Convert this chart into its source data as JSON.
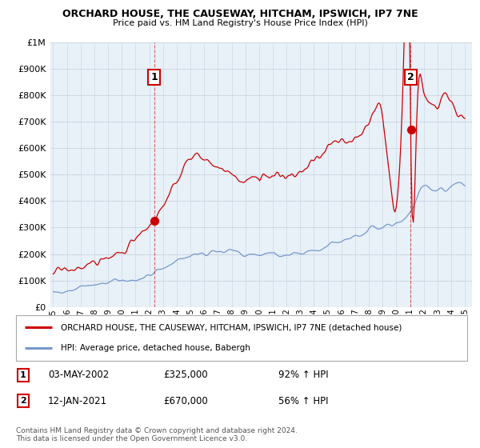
{
  "title": "ORCHARD HOUSE, THE CAUSEWAY, HITCHAM, IPSWICH, IP7 7NE",
  "subtitle": "Price paid vs. HM Land Registry's House Price Index (HPI)",
  "legend_label_red": "ORCHARD HOUSE, THE CAUSEWAY, HITCHAM, IPSWICH, IP7 7NE (detached house)",
  "legend_label_blue": "HPI: Average price, detached house, Babergh",
  "sale1_label": "1",
  "sale1_date": "03-MAY-2002",
  "sale1_price": "£325,000",
  "sale1_hpi": "92% ↑ HPI",
  "sale2_label": "2",
  "sale2_date": "12-JAN-2021",
  "sale2_price": "£670,000",
  "sale2_hpi": "56% ↑ HPI",
  "footer": "Contains HM Land Registry data © Crown copyright and database right 2024.\nThis data is licensed under the Open Government Licence v3.0.",
  "red_color": "#cc0000",
  "blue_color": "#7799cc",
  "chart_bg": "#e8f0f8",
  "grid_color": "#c8d4e0",
  "sale1_x": 2002.35,
  "sale1_y": 325000,
  "sale2_x": 2021.04,
  "sale2_y": 670000,
  "ylim": [
    0,
    1000000
  ],
  "xlim_start": 1994.8,
  "xlim_end": 2025.5
}
